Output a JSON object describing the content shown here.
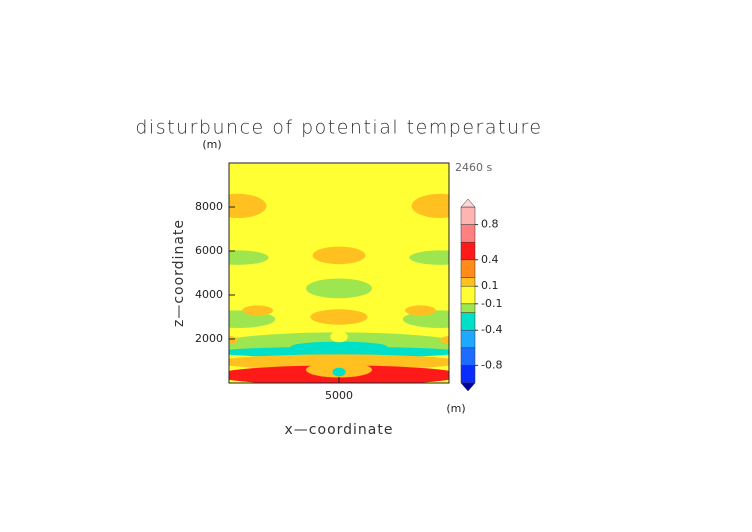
{
  "chart_data": {
    "type": "contour",
    "title": "disturbunce of potential temperature",
    "time_label": "2460 s",
    "y_unit": "(m)",
    "x_unit": "(m)",
    "xlabel": "x—coordinate",
    "ylabel": "z—coordinate",
    "xlim": [
      0,
      10000
    ],
    "ylim": [
      0,
      10000
    ],
    "xticks": [
      5000
    ],
    "yticks": [
      2000,
      4000,
      6000,
      8000
    ],
    "levels": [
      -1,
      -0.8,
      -0.6,
      -0.4,
      -0.2,
      -0.1,
      0.1,
      0.2,
      0.4,
      0.6,
      0.8,
      1
    ],
    "colors": [
      "#0a2cff",
      "#1e6cff",
      "#1ea8ff",
      "#00e0c8",
      "#9ee650",
      "#ffff33",
      "#ffc020",
      "#ff8c1a",
      "#ff1a1a",
      "#ff8080",
      "#ffb4b4"
    ],
    "over_color": "#ffd4d4",
    "under_color": "#0000a0",
    "cbar_ticks": [
      0.8,
      0.4,
      0.1,
      -0.1,
      -0.4,
      -0.8
    ],
    "regions": [
      {
        "x": 400,
        "z": 8050,
        "rx": 1300,
        "rz": 550,
        "value": 0.15
      },
      {
        "x": 9600,
        "z": 8050,
        "rx": 1300,
        "rz": 550,
        "value": 0.15
      },
      {
        "x": 400,
        "z": 5700,
        "rx": 1400,
        "rz": 330,
        "value": -0.15
      },
      {
        "x": 9600,
        "z": 5700,
        "rx": 1400,
        "rz": 330,
        "value": -0.15
      },
      {
        "x": 5000,
        "z": 5800,
        "rx": 1200,
        "rz": 400,
        "value": 0.15
      },
      {
        "x": 5000,
        "z": 4300,
        "rx": 1500,
        "rz": 450,
        "value": -0.15
      },
      {
        "x": 400,
        "z": 2900,
        "rx": 1700,
        "rz": 400,
        "value": -0.15
      },
      {
        "x": 9600,
        "z": 2900,
        "rx": 1700,
        "rz": 400,
        "value": -0.15
      },
      {
        "x": 1300,
        "z": 3300,
        "rx": 700,
        "rz": 230,
        "value": 0.15
      },
      {
        "x": 8700,
        "z": 3300,
        "rx": 700,
        "rz": 230,
        "value": 0.15
      },
      {
        "x": 5000,
        "z": 3000,
        "rx": 1300,
        "rz": 350,
        "value": 0.15
      },
      {
        "x": 5000,
        "z": 1750,
        "rx": 5600,
        "rz": 550,
        "value": -0.15
      },
      {
        "x": 5000,
        "z": 1400,
        "rx": 5600,
        "rz": 250,
        "value": -0.3
      },
      {
        "x": 5000,
        "z": 1650,
        "rx": 2200,
        "rz": 230,
        "value": -0.3
      },
      {
        "x": 0,
        "z": 1950,
        "rx": 400,
        "rz": 180,
        "value": 0.15
      },
      {
        "x": 10000,
        "z": 1950,
        "rx": 400,
        "rz": 180,
        "value": 0.15
      },
      {
        "x": 5000,
        "z": 950,
        "rx": 5600,
        "rz": 350,
        "value": 0.15
      },
      {
        "x": 5000,
        "z": 350,
        "rx": 5600,
        "rz": 450,
        "value": 0.5
      },
      {
        "x": 5000,
        "z": 600,
        "rx": 1500,
        "rz": 350,
        "value": 0.15
      },
      {
        "x": 5000,
        "z": 500,
        "rx": 300,
        "rz": 200,
        "value": -0.3
      },
      {
        "x": 5000,
        "z": 2100,
        "rx": 400,
        "rz": 250,
        "value": 0.0
      }
    ]
  }
}
